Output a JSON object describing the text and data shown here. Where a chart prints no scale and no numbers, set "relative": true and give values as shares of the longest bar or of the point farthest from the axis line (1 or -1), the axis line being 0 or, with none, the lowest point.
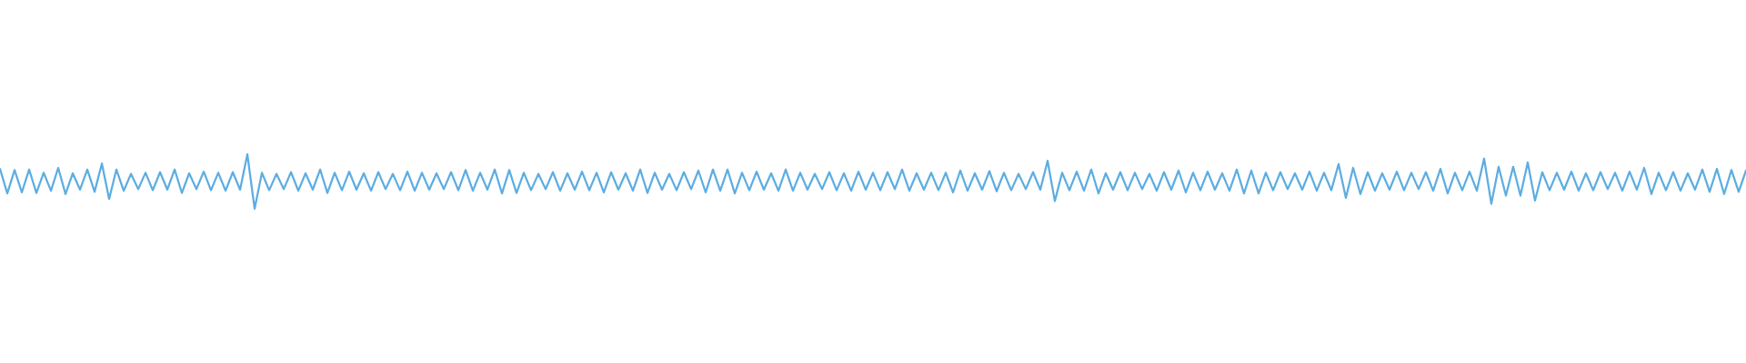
{
  "chart_data": {
    "type": "line",
    "relative": true,
    "categories": [
      null,
      null,
      null,
      null,
      null,
      null,
      null,
      null,
      null,
      null,
      null,
      null,
      null,
      null,
      null,
      null,
      null,
      null,
      null,
      null,
      null,
      null,
      null,
      null,
      null,
      null,
      null,
      null,
      null,
      null,
      null,
      null,
      null,
      null,
      null,
      null,
      null,
      null,
      null,
      null,
      null,
      null,
      null,
      null,
      null,
      null,
      null,
      null,
      null,
      null,
      null,
      null,
      null,
      null,
      null,
      null,
      null,
      null,
      null,
      null,
      null,
      null,
      null,
      null,
      null,
      null,
      null,
      null,
      null,
      null,
      null,
      null,
      null,
      null,
      null,
      null,
      null,
      null,
      null,
      null,
      null,
      null,
      null,
      null,
      null,
      null,
      null,
      null,
      null,
      null,
      null,
      null,
      null,
      null,
      null,
      null,
      null,
      null,
      null,
      null,
      null,
      null,
      null,
      null,
      null,
      null,
      null,
      null,
      null,
      null,
      null,
      null,
      null,
      null,
      null,
      null,
      null,
      null,
      null,
      null,
      null,
      null,
      null,
      null,
      null,
      null,
      null,
      null,
      null,
      null,
      null,
      null,
      null,
      null,
      null,
      null,
      null,
      null,
      null,
      null,
      null,
      null,
      null,
      null,
      null,
      null,
      null,
      null,
      null,
      null,
      null,
      null,
      null,
      null,
      null,
      null,
      null,
      null,
      null,
      null,
      null,
      null,
      null,
      null,
      null,
      null,
      null,
      null,
      null,
      null,
      null,
      null,
      null,
      null,
      null,
      null,
      null,
      null,
      null,
      null,
      null,
      null,
      null,
      null,
      null,
      null,
      null,
      null,
      null,
      null,
      null,
      null,
      null,
      null,
      null,
      null,
      null,
      null,
      null,
      null,
      null,
      null,
      null,
      null,
      null,
      null,
      null,
      null,
      null,
      null,
      null,
      null,
      null,
      null,
      null,
      null,
      null,
      null,
      null,
      null,
      null,
      null,
      null,
      null,
      null,
      null,
      null,
      null,
      null,
      null,
      null,
      null,
      null,
      null,
      null,
      null,
      null,
      null,
      null,
      null,
      null
    ],
    "series": [
      {
        "color": "#5dade2",
        "values": [
          0.73,
          0.28,
          0.71,
          0.3,
          0.72,
          0.29,
          0.66,
          0.33,
          0.75,
          0.27,
          0.65,
          0.35,
          0.72,
          0.31,
          0.83,
          0.18,
          0.72,
          0.33,
          0.64,
          0.36,
          0.66,
          0.34,
          0.67,
          0.35,
          0.72,
          0.29,
          0.65,
          0.36,
          0.68,
          0.34,
          0.66,
          0.33,
          0.67,
          0.35,
          1.0,
          0.0,
          0.66,
          0.34,
          0.64,
          0.36,
          0.67,
          0.33,
          0.65,
          0.35,
          0.72,
          0.29,
          0.66,
          0.34,
          0.68,
          0.35,
          0.65,
          0.33,
          0.67,
          0.36,
          0.64,
          0.34,
          0.68,
          0.33,
          0.66,
          0.35,
          0.65,
          0.36,
          0.67,
          0.34,
          0.71,
          0.33,
          0.66,
          0.35,
          0.72,
          0.28,
          0.71,
          0.29,
          0.66,
          0.34,
          0.64,
          0.36,
          0.67,
          0.33,
          0.65,
          0.35,
          0.68,
          0.34,
          0.66,
          0.3,
          0.67,
          0.35,
          0.65,
          0.33,
          0.72,
          0.29,
          0.66,
          0.35,
          0.64,
          0.34,
          0.67,
          0.36,
          0.7,
          0.3,
          0.72,
          0.33,
          0.72,
          0.28,
          0.66,
          0.34,
          0.68,
          0.35,
          0.65,
          0.33,
          0.72,
          0.33,
          0.66,
          0.35,
          0.64,
          0.36,
          0.67,
          0.34,
          0.65,
          0.33,
          0.68,
          0.35,
          0.66,
          0.34,
          0.67,
          0.36,
          0.72,
          0.33,
          0.65,
          0.35,
          0.66,
          0.34,
          0.66,
          0.3,
          0.7,
          0.33,
          0.65,
          0.35,
          0.69,
          0.32,
          0.66,
          0.34,
          0.64,
          0.36,
          0.67,
          0.35,
          0.88,
          0.14,
          0.66,
          0.34,
          0.68,
          0.33,
          0.72,
          0.28,
          0.65,
          0.35,
          0.67,
          0.34,
          0.66,
          0.36,
          0.64,
          0.33,
          0.67,
          0.35,
          0.7,
          0.3,
          0.66,
          0.34,
          0.68,
          0.35,
          0.65,
          0.33,
          0.72,
          0.28,
          0.7,
          0.28,
          0.66,
          0.34,
          0.67,
          0.36,
          0.65,
          0.35,
          0.68,
          0.33,
          0.66,
          0.34,
          0.82,
          0.2,
          0.75,
          0.27,
          0.67,
          0.33,
          0.65,
          0.35,
          0.68,
          0.34,
          0.66,
          0.36,
          0.67,
          0.33,
          0.73,
          0.28,
          0.66,
          0.34,
          0.68,
          0.33,
          0.92,
          0.09,
          0.77,
          0.24,
          0.77,
          0.24,
          0.85,
          0.15,
          0.67,
          0.34,
          0.66,
          0.35,
          0.68,
          0.33,
          0.65,
          0.34,
          0.67,
          0.36,
          0.66,
          0.33,
          0.68,
          0.35,
          0.75,
          0.27,
          0.66,
          0.34,
          0.67,
          0.33,
          0.65,
          0.35,
          0.72,
          0.31,
          0.73,
          0.27,
          0.71,
          0.31,
          0.7
        ]
      }
    ]
  }
}
